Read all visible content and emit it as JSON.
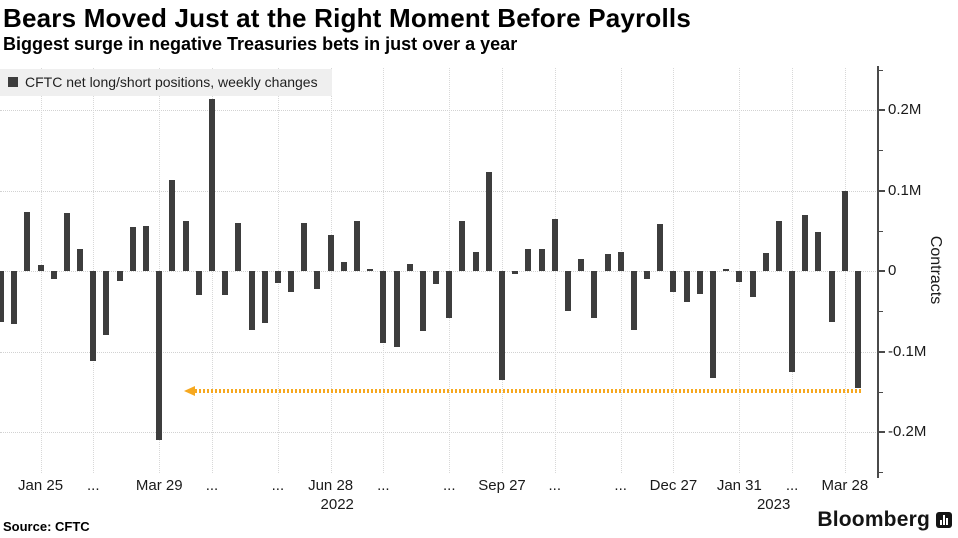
{
  "header": {
    "title": "Bears Moved Just at the Right Moment Before Payrolls",
    "subtitle": "Biggest surge in negative Treasuries bets in just over a year"
  },
  "legend": {
    "label": "CFTC net long/short positions, weekly changes"
  },
  "footer": {
    "source": "Source: CFTC",
    "brand": "Bloomberg"
  },
  "chart_data": {
    "type": "bar",
    "title": "Bears Moved Just at the Right Moment Before Payrolls",
    "subtitle": "Biggest surge in negative Treasuries bets in just over a year",
    "series_name": "CFTC net long/short positions, weekly changes",
    "units": "millions of contracts, weekly change",
    "ylabel": "Contracts",
    "ylim": [
      -0.25,
      0.25
    ],
    "grid": true,
    "legend_position": "top-left",
    "bar_color": "#3d3d3d",
    "annotation_color": "#f6a81f",
    "values": [
      -0.063,
      -0.066,
      0.073,
      0.007,
      -0.01,
      0.072,
      0.027,
      -0.112,
      -0.08,
      -0.013,
      0.055,
      0.056,
      -0.21,
      0.113,
      0.062,
      -0.03,
      0.214,
      -0.03,
      0.06,
      -0.073,
      -0.064,
      -0.015,
      -0.026,
      0.06,
      -0.022,
      0.045,
      0.011,
      0.062,
      0.002,
      -0.09,
      -0.095,
      0.009,
      -0.075,
      -0.016,
      -0.058,
      0.062,
      0.024,
      0.123,
      -0.135,
      -0.004,
      0.027,
      0.027,
      0.064,
      -0.05,
      0.015,
      -0.059,
      0.021,
      0.024,
      -0.073,
      -0.01,
      0.059,
      -0.026,
      -0.039,
      -0.028,
      -0.133,
      0.003,
      -0.014,
      -0.032,
      0.022,
      0.062,
      -0.125,
      0.07,
      0.049,
      -0.063,
      0.099,
      -0.145
    ],
    "y_major_ticks": [
      {
        "value": 0.2,
        "label": "0.2M"
      },
      {
        "value": 0.1,
        "label": "0.1M"
      },
      {
        "value": 0,
        "label": "0"
      },
      {
        "value": -0.1,
        "label": "-0.1M"
      },
      {
        "value": -0.2,
        "label": "-0.2M"
      }
    ],
    "y_minor_tick_values": [
      0.25,
      0.15,
      0.05,
      -0.05,
      -0.15,
      -0.25
    ],
    "x_ticks": [
      {
        "index": 3,
        "label": "Jan 25"
      },
      {
        "index": 7,
        "label": "..."
      },
      {
        "index": 12,
        "label": "Mar 29"
      },
      {
        "index": 16,
        "label": "..."
      },
      {
        "index": 21,
        "label": "..."
      },
      {
        "index": 25,
        "label": "Jun 28"
      },
      {
        "index": 29,
        "label": "..."
      },
      {
        "index": 34,
        "label": "..."
      },
      {
        "index": 38,
        "label": "Sep 27"
      },
      {
        "index": 42,
        "label": "..."
      },
      {
        "index": 47,
        "label": "..."
      },
      {
        "index": 51,
        "label": "Dec 27"
      },
      {
        "index": 56,
        "label": "Jan 31"
      },
      {
        "index": 60,
        "label": "..."
      },
      {
        "index": 64,
        "label": "Mar 28"
      }
    ],
    "x_year_labels": [
      {
        "index": 25.5,
        "label": "2022"
      },
      {
        "index": 58.6,
        "label": "2023"
      }
    ],
    "annotation": {
      "kind": "dotted-arrow",
      "y_value": -0.149,
      "start_index": 14,
      "end_index": 65,
      "arrow_direction": "left"
    }
  }
}
